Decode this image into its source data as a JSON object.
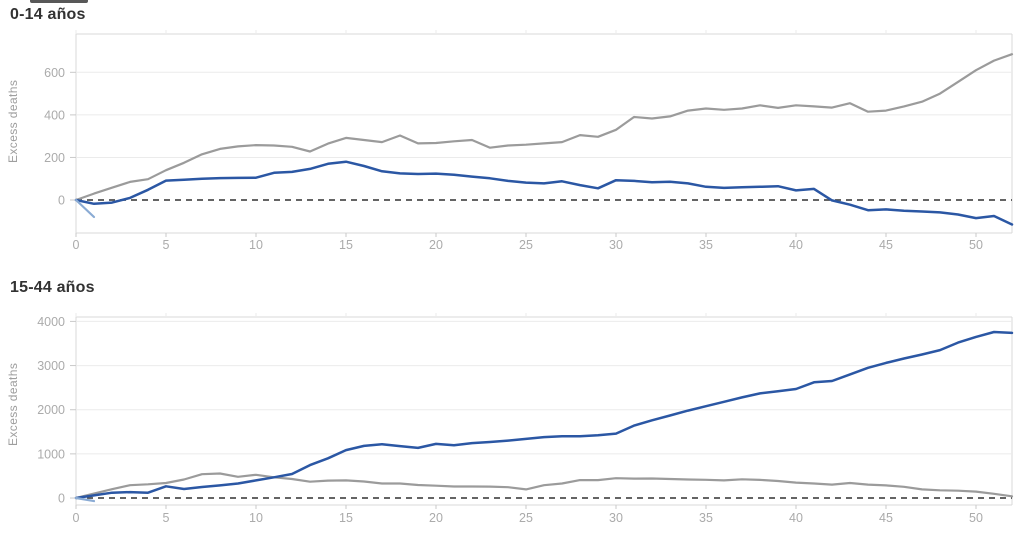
{
  "colors": {
    "blue": "#2b57a4",
    "gray": "#9b9b9b",
    "light_blue": "#8aabd4",
    "zero_line": "#4f4f4f",
    "grid": "#ebebeb",
    "spine": "#d9d9d9",
    "tick": "#c9c9c9",
    "tick_label": "#ababab",
    "title": "#323232",
    "axis_label": "#9e9e9e"
  },
  "chart_data": [
    {
      "type": "line",
      "title": "0-14 años",
      "ylabel": "Excess deaths",
      "xlabel": "",
      "xlim": [
        0,
        52
      ],
      "ylim": [
        -155,
        780
      ],
      "xticks": [
        0,
        5,
        10,
        15,
        20,
        25,
        30,
        35,
        40,
        45,
        50
      ],
      "yticks": [
        0,
        200,
        400,
        600
      ],
      "grid": true,
      "legend": "none",
      "zero_line": "dashed",
      "series": [
        {
          "name": "gray-line",
          "color": "gray",
          "values": [
            0,
            30,
            58,
            85,
            98,
            140,
            175,
            215,
            240,
            252,
            258,
            256,
            250,
            228,
            265,
            292,
            282,
            272,
            303,
            266,
            268,
            276,
            282,
            246,
            256,
            260,
            266,
            272,
            305,
            297,
            330,
            390,
            383,
            393,
            420,
            430,
            424,
            430,
            445,
            433,
            445,
            440,
            434,
            455,
            415,
            420,
            440,
            462,
            500,
            555,
            610,
            655,
            685
          ]
        },
        {
          "name": "blue-line",
          "color": "blue",
          "values": [
            0,
            -18,
            -12,
            10,
            48,
            91,
            95,
            100,
            103,
            104,
            105,
            128,
            132,
            146,
            170,
            180,
            160,
            135,
            125,
            122,
            124,
            119,
            110,
            102,
            90,
            82,
            78,
            88,
            70,
            55,
            93,
            90,
            83,
            86,
            78,
            62,
            57,
            60,
            62,
            65,
            45,
            52,
            -2,
            -22,
            -48,
            -44,
            -50,
            -54,
            -58,
            -68,
            -85,
            -75,
            -115
          ]
        },
        {
          "name": "lightblue-start-segment",
          "color": "light_blue",
          "x": [
            0,
            1
          ],
          "values": [
            0,
            -80
          ]
        }
      ]
    },
    {
      "type": "line",
      "title": "15-44 años",
      "ylabel": "Excess deaths",
      "xlabel": "",
      "xlim": [
        0,
        52
      ],
      "ylim": [
        -158,
        4100
      ],
      "xticks": [
        0,
        5,
        10,
        15,
        20,
        25,
        30,
        35,
        40,
        45,
        50
      ],
      "yticks": [
        0,
        1000,
        2000,
        3000,
        4000
      ],
      "grid": true,
      "legend": "none",
      "zero_line": "dashed",
      "series": [
        {
          "name": "gray-line",
          "color": "gray",
          "values": [
            0,
            100,
            200,
            290,
            310,
            340,
            420,
            540,
            555,
            480,
            525,
            470,
            430,
            370,
            395,
            400,
            375,
            330,
            330,
            295,
            280,
            260,
            262,
            258,
            245,
            195,
            290,
            330,
            405,
            405,
            450,
            440,
            442,
            430,
            420,
            412,
            400,
            425,
            410,
            385,
            350,
            330,
            305,
            340,
            305,
            285,
            255,
            195,
            175,
            165,
            145,
            95,
            40
          ]
        },
        {
          "name": "blue-line",
          "color": "blue",
          "values": [
            0,
            60,
            120,
            135,
            120,
            265,
            205,
            250,
            285,
            330,
            400,
            470,
            545,
            745,
            900,
            1085,
            1180,
            1220,
            1175,
            1135,
            1225,
            1195,
            1245,
            1270,
            1300,
            1340,
            1380,
            1400,
            1400,
            1420,
            1460,
            1640,
            1760,
            1870,
            1980,
            2080,
            2180,
            2280,
            2370,
            2420,
            2470,
            2620,
            2650,
            2800,
            2950,
            3060,
            3160,
            3250,
            3350,
            3520,
            3650,
            3760,
            3740
          ]
        },
        {
          "name": "lightblue-start-segment",
          "color": "light_blue",
          "x": [
            0,
            1
          ],
          "values": [
            0,
            -70
          ]
        }
      ]
    }
  ]
}
